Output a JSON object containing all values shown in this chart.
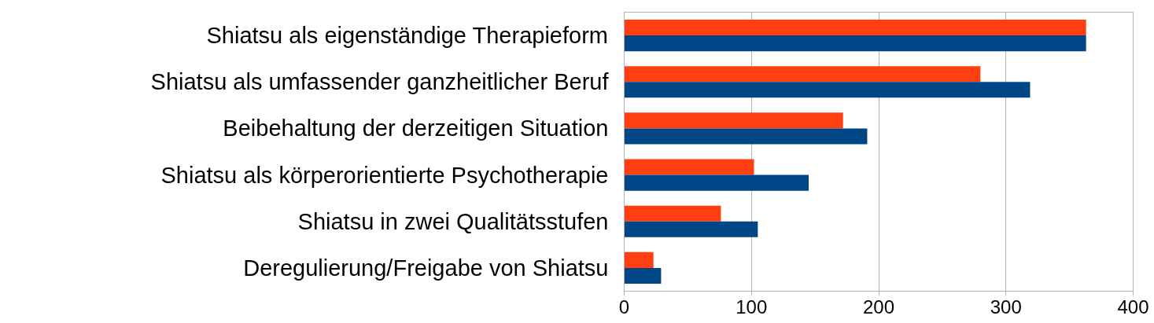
{
  "chart_data": {
    "type": "bar",
    "orientation": "horizontal",
    "categories": [
      "Shiatsu als eigenständige Therapieform",
      "Shiatsu als umfassender ganzheitlicher Beruf",
      "Beibehaltung der derzeitigen Situation",
      "Shiatsu als körperorientierte Psychotherapie",
      "Shiatsu in zwei Qualitätsstufen",
      "Deregulierung/Freigabe von Shiatsu"
    ],
    "series": [
      {
        "color": "#ff3f11",
        "values": [
          363,
          280,
          172,
          102,
          76,
          23
        ]
      },
      {
        "color": "#004586",
        "values": [
          363,
          319,
          191,
          145,
          105,
          29
        ]
      }
    ],
    "xlim": [
      0,
      400
    ],
    "xticks": [
      0,
      100,
      200,
      300,
      400
    ],
    "grid": "x"
  }
}
